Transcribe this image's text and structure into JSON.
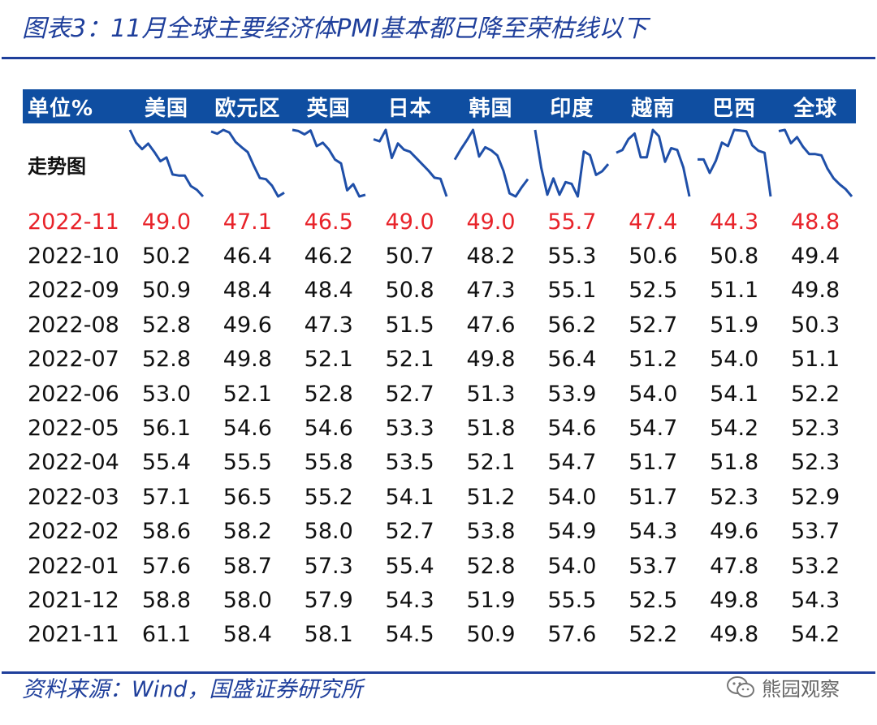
{
  "title": "图表3：11月全球主要经济体PMI基本都已降至荣枯线以下",
  "table": {
    "corner": "单位%",
    "columns": [
      "美国",
      "欧元区",
      "英国",
      "日本",
      "韩国",
      "印度",
      "越南",
      "巴西",
      "全球"
    ],
    "trend_label": "走势图",
    "rows": [
      {
        "date": "2022-11",
        "values": [
          "49.0",
          "47.1",
          "46.5",
          "49.0",
          "49.0",
          "55.7",
          "47.4",
          "44.3",
          "48.8"
        ]
      },
      {
        "date": "2022-10",
        "values": [
          "50.2",
          "46.4",
          "46.2",
          "50.7",
          "48.2",
          "55.3",
          "50.6",
          "50.8",
          "49.4"
        ]
      },
      {
        "date": "2022-09",
        "values": [
          "50.9",
          "48.4",
          "48.4",
          "50.8",
          "47.3",
          "55.1",
          "52.5",
          "51.1",
          "49.8"
        ]
      },
      {
        "date": "2022-08",
        "values": [
          "52.8",
          "49.6",
          "47.3",
          "51.5",
          "47.6",
          "56.2",
          "52.7",
          "51.9",
          "50.3"
        ]
      },
      {
        "date": "2022-07",
        "values": [
          "52.8",
          "49.8",
          "52.1",
          "52.1",
          "49.8",
          "56.4",
          "51.2",
          "54.0",
          "51.1"
        ]
      },
      {
        "date": "2022-06",
        "values": [
          "53.0",
          "52.1",
          "52.8",
          "52.7",
          "51.3",
          "53.9",
          "54.0",
          "54.1",
          "52.2"
        ]
      },
      {
        "date": "2022-05",
        "values": [
          "56.1",
          "54.6",
          "54.6",
          "53.3",
          "51.8",
          "54.6",
          "54.7",
          "54.2",
          "52.3"
        ]
      },
      {
        "date": "2022-04",
        "values": [
          "55.4",
          "55.5",
          "55.8",
          "53.5",
          "52.1",
          "54.7",
          "51.7",
          "51.8",
          "52.3"
        ]
      },
      {
        "date": "2022-03",
        "values": [
          "57.1",
          "56.5",
          "55.2",
          "54.1",
          "51.2",
          "54.0",
          "51.7",
          "52.3",
          "52.9"
        ]
      },
      {
        "date": "2022-02",
        "values": [
          "58.6",
          "58.2",
          "58.0",
          "52.7",
          "53.8",
          "54.9",
          "54.3",
          "49.6",
          "53.7"
        ]
      },
      {
        "date": "2022-01",
        "values": [
          "57.6",
          "58.7",
          "57.3",
          "55.4",
          "52.8",
          "54.0",
          "53.7",
          "47.8",
          "53.2"
        ]
      },
      {
        "date": "2021-12",
        "values": [
          "58.8",
          "58.0",
          "57.9",
          "54.3",
          "51.9",
          "55.5",
          "52.5",
          "49.8",
          "54.3"
        ]
      },
      {
        "date": "2021-11",
        "values": [
          "61.1",
          "58.4",
          "58.1",
          "54.5",
          "50.9",
          "57.6",
          "52.2",
          "49.8",
          "54.2"
        ]
      }
    ]
  },
  "source": "资料来源：Wind，国盛证券研究所",
  "watermark": "熊园观察",
  "colors": {
    "title": "#1f3f9b",
    "header_bg": "#0f4ea1",
    "latest": "#e8232a",
    "line": "#1f4fa8"
  }
}
